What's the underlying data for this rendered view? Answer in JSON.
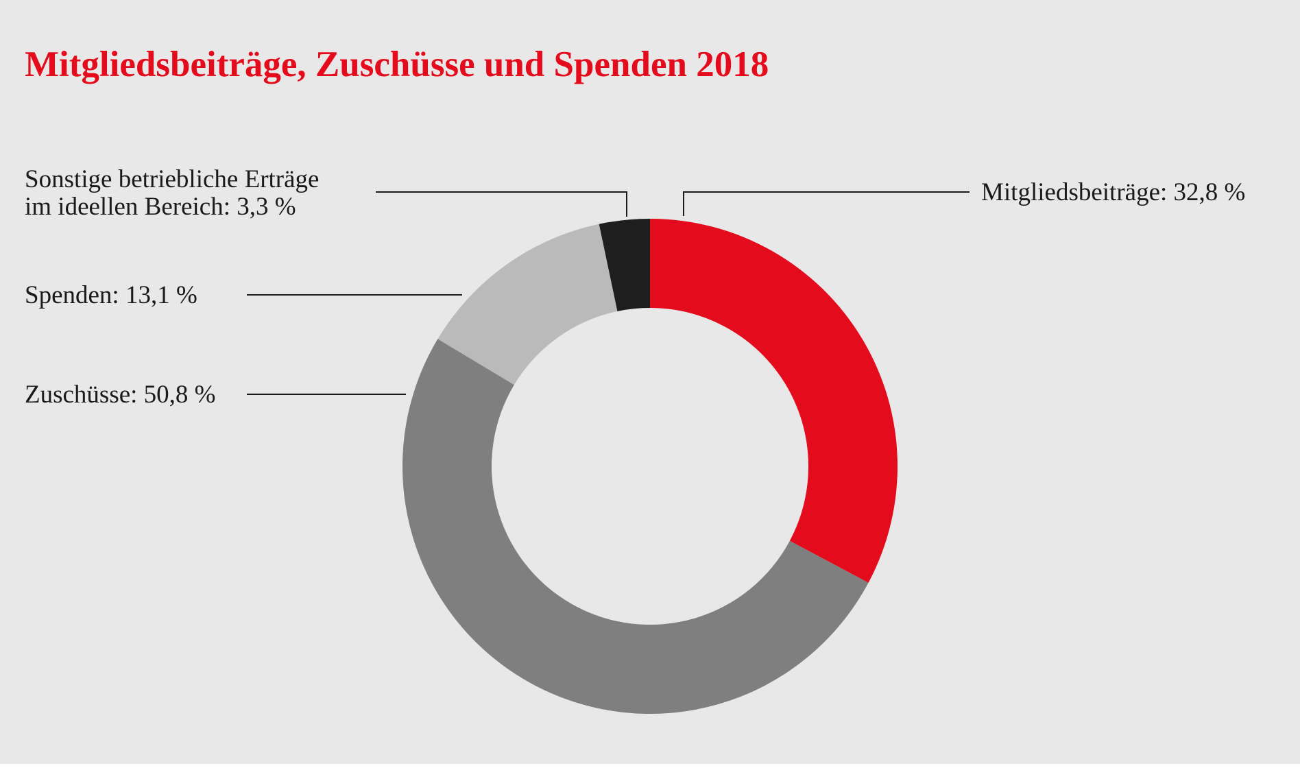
{
  "chart_data": {
    "type": "pie",
    "title": "Mitgliedsbeiträge, Zuschüsse und Spenden 2018",
    "donut": true,
    "slices": [
      {
        "name": "Mitgliedsbeiträge",
        "value": 32.8,
        "label": "Mitgliedsbeiträge:  32,8 %",
        "color": "#e30b1c"
      },
      {
        "name": "Zuschüsse",
        "value": 50.8,
        "label": "Zuschüsse:  50,8 %",
        "color": "#7f7f7f"
      },
      {
        "name": "Spenden",
        "value": 13.1,
        "label": "Spenden:  13,1 %",
        "color": "#bababa"
      },
      {
        "name": "Sonstige betriebliche Erträge im ideellen Bereich",
        "value": 3.3,
        "label_lines": [
          "Sonstige betriebliche Erträge",
          "im ideellen Bereich:  3,3 %"
        ],
        "color": "#1e1e1e"
      }
    ],
    "background_color": "#e9e8e8",
    "title_color": "#e30b1c"
  }
}
